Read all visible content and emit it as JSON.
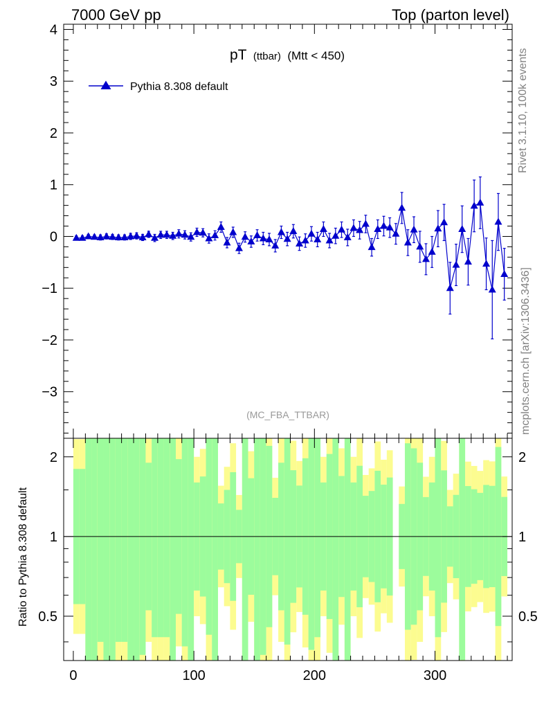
{
  "header": {
    "left": "7000 GeV pp",
    "right": "Top (parton level)"
  },
  "title": {
    "main": "pT",
    "sub1": "(ttbar)",
    "sub2": "(Mtt < 450)"
  },
  "side_label_top": "Rivet 3.1.10,  100k events",
  "side_label_bottom": "mcplots.cern.ch [arXiv:1306.3436]",
  "analysis_tag": "(MC_FBA_TTBAR)",
  "legend": {
    "entry": "Pythia 8.308 default"
  },
  "colors": {
    "series": "#0000cc",
    "band_inner": "#9cfc9c",
    "band_outer": "#fcfc90",
    "ratio_line": "#000000"
  },
  "chart_data": [
    {
      "type": "line",
      "series": [
        {
          "name": "Pythia 8.308 default",
          "x": [
            2.5,
            7.5,
            12.5,
            17.5,
            22.5,
            27.5,
            32.5,
            37.5,
            42.5,
            47.5,
            52.5,
            57.5,
            62.5,
            67.5,
            72.5,
            77.5,
            82.5,
            87.5,
            92.5,
            97.5,
            102.5,
            107.5,
            112.5,
            117.5,
            122.5,
            127.5,
            132.5,
            137.5,
            142.5,
            147.5,
            152.5,
            157.5,
            162.5,
            167.5,
            172.5,
            177.5,
            182.5,
            187.5,
            192.5,
            197.5,
            202.5,
            207.5,
            212.5,
            217.5,
            222.5,
            227.5,
            232.5,
            237.5,
            242.5,
            247.5,
            252.5,
            257.5,
            262.5,
            267.5,
            272.5,
            277.5,
            282.5,
            287.5,
            292.5,
            297.5,
            302.5,
            307.5,
            312.5,
            317.5,
            322.5,
            327.5,
            332.5,
            337.5,
            342.5,
            347.5,
            352.5,
            357.5
          ],
          "y": [
            -0.03,
            -0.03,
            0.0,
            -0.01,
            -0.02,
            0.0,
            -0.01,
            -0.02,
            -0.02,
            0.0,
            0.01,
            -0.02,
            0.04,
            -0.03,
            0.03,
            0.03,
            0.01,
            0.05,
            0.03,
            -0.01,
            0.08,
            0.07,
            -0.04,
            0.02,
            0.18,
            -0.12,
            0.08,
            -0.23,
            -0.01,
            -0.1,
            0.02,
            -0.04,
            -0.06,
            -0.18,
            0.08,
            -0.05,
            0.1,
            -0.14,
            -0.08,
            0.05,
            -0.06,
            0.14,
            -0.08,
            0.01,
            0.13,
            -0.02,
            0.16,
            0.12,
            0.24,
            -0.21,
            0.14,
            0.2,
            0.17,
            0.05,
            0.55,
            -0.12,
            0.13,
            -0.2,
            -0.44,
            -0.3,
            0.15,
            0.27,
            -1.0,
            -0.55,
            0.14,
            -0.49,
            0.59,
            0.65,
            -0.53,
            -1.03,
            0.28,
            -0.73
          ],
          "yerr": [
            0.04,
            0.04,
            0.04,
            0.04,
            0.05,
            0.05,
            0.05,
            0.05,
            0.05,
            0.06,
            0.06,
            0.06,
            0.06,
            0.07,
            0.07,
            0.07,
            0.07,
            0.08,
            0.08,
            0.08,
            0.08,
            0.08,
            0.09,
            0.09,
            0.1,
            0.1,
            0.1,
            0.1,
            0.1,
            0.11,
            0.11,
            0.12,
            0.12,
            0.12,
            0.12,
            0.13,
            0.13,
            0.13,
            0.13,
            0.14,
            0.14,
            0.14,
            0.14,
            0.15,
            0.15,
            0.16,
            0.16,
            0.17,
            0.17,
            0.17,
            0.18,
            0.19,
            0.19,
            0.2,
            0.3,
            0.25,
            0.25,
            0.3,
            0.3,
            0.3,
            0.35,
            0.35,
            0.5,
            0.4,
            0.45,
            0.45,
            0.5,
            0.5,
            0.5,
            0.95,
            0.55,
            0.5
          ]
        }
      ],
      "xlim": [
        -8,
        364
      ],
      "ylim": [
        -3.9,
        4.1
      ],
      "yticks": [
        -3,
        -2,
        -1,
        0,
        1,
        2,
        3,
        4
      ],
      "ytick_labels": [
        "−3",
        "−2",
        "−1",
        "0",
        "1",
        "2",
        "3",
        "4"
      ],
      "legend_position": "top-left",
      "grid": false
    },
    {
      "type": "area",
      "ylabel": "Ratio to Pythia 8.308 default",
      "yscale": "log",
      "ylim": [
        0.34,
        2.35
      ],
      "yticks": [
        0.5,
        1,
        2
      ],
      "ytick_labels": [
        "0.5",
        "1",
        "2"
      ],
      "xticks": [
        0,
        100,
        200,
        300
      ],
      "xtick_labels": [
        "0",
        "100",
        "200",
        "300"
      ],
      "reference_line": 1,
      "gap_x": [
        265,
        268
      ],
      "grid": false
    }
  ]
}
